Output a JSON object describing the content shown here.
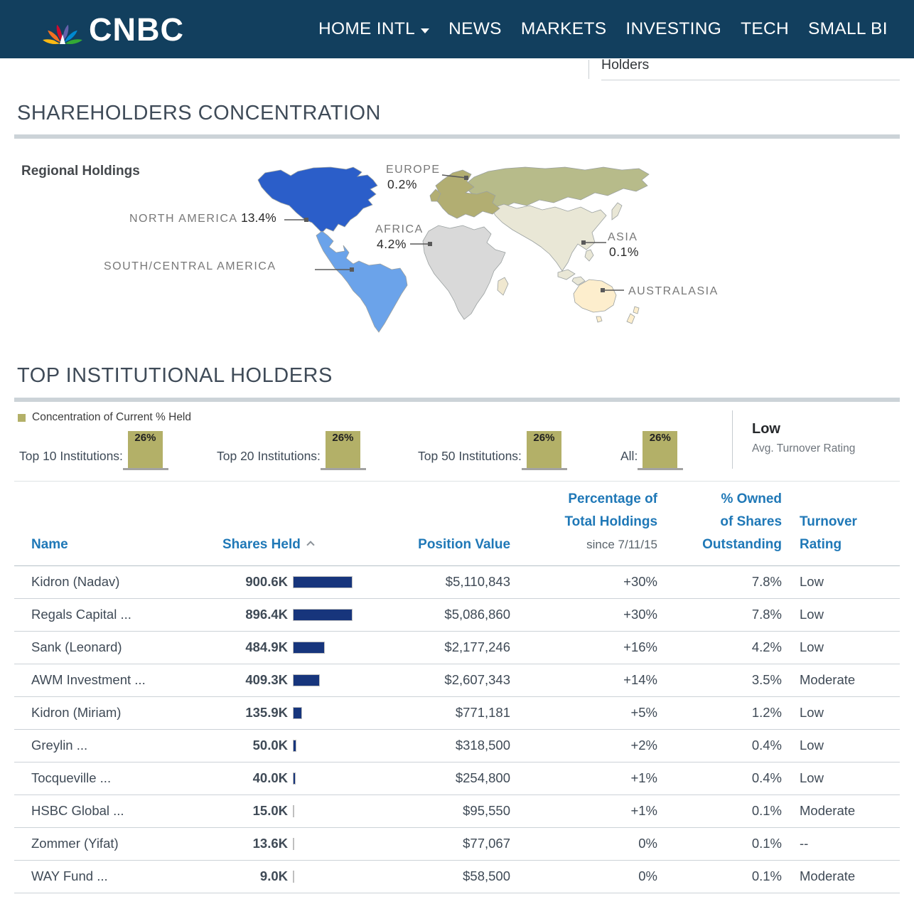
{
  "nav": {
    "brand": "CNBC",
    "items": [
      {
        "label": "HOME INTL"
      },
      {
        "label": "NEWS"
      },
      {
        "label": "MARKETS"
      },
      {
        "label": "INVESTING"
      },
      {
        "label": "TECH"
      },
      {
        "label": "SMALL BI"
      }
    ]
  },
  "tab_bar": {
    "active_tab": "Holders"
  },
  "shareholders_section": {
    "heading": "SHAREHOLDERS CONCENTRATION",
    "map_title": "Regional Holdings",
    "regions": [
      {
        "name": "NORTH AMERICA",
        "value": "13.4%"
      },
      {
        "name": "SOUTH/CENTRAL AMERICA",
        "value": ""
      },
      {
        "name": "EUROPE",
        "value": "0.2%"
      },
      {
        "name": "AFRICA",
        "value": "4.2%"
      },
      {
        "name": "ASIA",
        "value": "0.1%"
      },
      {
        "name": "AUSTRALASIA",
        "value": ""
      }
    ]
  },
  "holders_section": {
    "heading": "TOP INSTITUTIONAL HOLDERS",
    "legend": "Concentration of Current % Held",
    "concentration": [
      {
        "label": "Top 10 Institutions:",
        "value": "26%"
      },
      {
        "label": "Top 20 Institutions:",
        "value": "26%"
      },
      {
        "label": "Top 50 Institutions:",
        "value": "26%"
      },
      {
        "label": "All:",
        "value": "26%"
      }
    ],
    "avg_turnover": {
      "rating": "Low",
      "caption": "Avg. Turnover Rating"
    }
  },
  "table": {
    "headers": {
      "name": "Name",
      "shares_held": "Shares Held",
      "position_value": "Position Value",
      "pct_line1": "Percentage of",
      "pct_line2": "Total Holdings",
      "pct_line3": "since 7/11/15",
      "owned_line1": "% Owned",
      "owned_line2": "of Shares",
      "owned_line3": "Outstanding",
      "turnover_line1": "Turnover",
      "turnover_line2": "Rating"
    },
    "rows": [
      {
        "name": "Kidron (Nadav)",
        "shares": "900.6K",
        "shares_k": 900.6,
        "position_value": "$5,110,843",
        "pct_change": "+30%",
        "pct_owned": "7.8%",
        "turnover": "Low"
      },
      {
        "name": "Regals Capital ...",
        "shares": "896.4K",
        "shares_k": 896.4,
        "position_value": "$5,086,860",
        "pct_change": "+30%",
        "pct_owned": "7.8%",
        "turnover": "Low"
      },
      {
        "name": "Sank (Leonard)",
        "shares": "484.9K",
        "shares_k": 484.9,
        "position_value": "$2,177,246",
        "pct_change": "+16%",
        "pct_owned": "4.2%",
        "turnover": "Low"
      },
      {
        "name": "AWM Investment ...",
        "shares": "409.3K",
        "shares_k": 409.3,
        "position_value": "$2,607,343",
        "pct_change": "+14%",
        "pct_owned": "3.5%",
        "turnover": "Moderate"
      },
      {
        "name": "Kidron (Miriam)",
        "shares": "135.9K",
        "shares_k": 135.9,
        "position_value": "$771,181",
        "pct_change": "+5%",
        "pct_owned": "1.2%",
        "turnover": "Low"
      },
      {
        "name": "Greylin ...",
        "shares": "50.0K",
        "shares_k": 50.0,
        "position_value": "$318,500",
        "pct_change": "+2%",
        "pct_owned": "0.4%",
        "turnover": "Low"
      },
      {
        "name": "Tocqueville ...",
        "shares": "40.0K",
        "shares_k": 40.0,
        "position_value": "$254,800",
        "pct_change": "+1%",
        "pct_owned": "0.4%",
        "turnover": "Low"
      },
      {
        "name": "HSBC Global ...",
        "shares": "15.0K",
        "shares_k": 15.0,
        "position_value": "$95,550",
        "pct_change": "+1%",
        "pct_owned": "0.1%",
        "turnover": "Moderate"
      },
      {
        "name": "Zommer (Yifat)",
        "shares": "13.6K",
        "shares_k": 13.6,
        "position_value": "$77,067",
        "pct_change": "0%",
        "pct_owned": "0.1%",
        "turnover": "--"
      },
      {
        "name": "WAY Fund ...",
        "shares": "9.0K",
        "shares_k": 9.0,
        "position_value": "$58,500",
        "pct_change": "0%",
        "pct_owned": "0.1%",
        "turnover": "Moderate"
      }
    ]
  },
  "colors": {
    "navbar": "#123f5e",
    "table_header_blue": "#1f78b7",
    "positive_green": "#4d7c1c",
    "shares_bar_navy": "#17357c",
    "concentration_olive": "#b3b068",
    "map_north_america": "#2b5ec9",
    "map_south_central_america": "#6ba3ea",
    "map_europe": "#b2ae72",
    "map_africa": "#d9d9d9",
    "map_north_asia": "#b7bb8a",
    "map_south_asia": "#e9e7d6",
    "map_australasia": "#fdeecd"
  }
}
